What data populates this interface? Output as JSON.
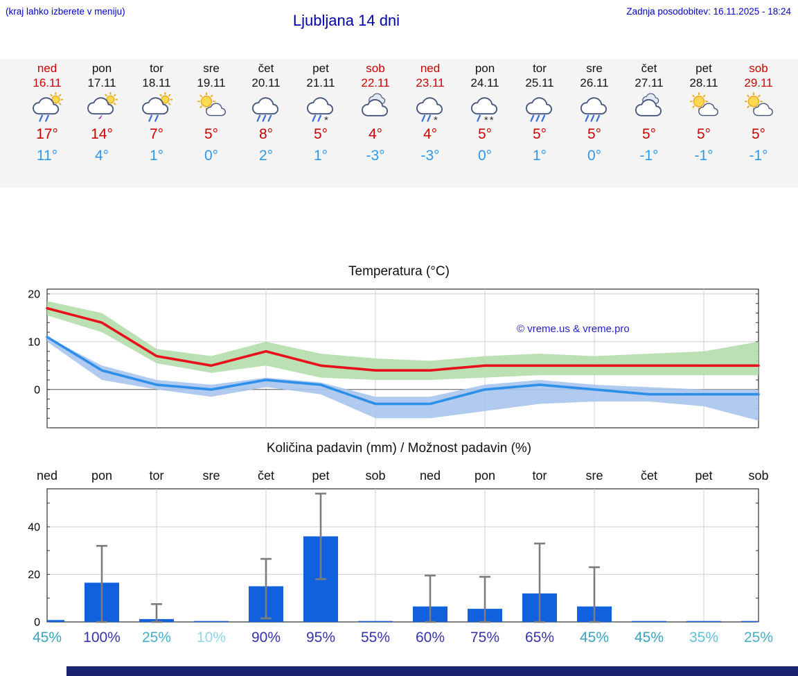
{
  "header": {
    "hint": "(kraj lahko izberete v meniju)",
    "title": "Ljubljana 14 dni",
    "updated": "Zadnja posodobitev: 16.11.2025 - 18:24"
  },
  "watermark": "© vreme.us & vreme.pro",
  "colors": {
    "link_blue": "#0000cc",
    "title_blue": "#0000aa",
    "weekend_red": "#cc0000",
    "high_temp_red": "#cc0000",
    "low_temp_blue": "#2f97e8",
    "temp_max_line": "#e8101c",
    "temp_min_line": "#2e8fe8",
    "temp_max_band": "#b2ddab",
    "temp_min_band": "#a8c4ee",
    "precip_bar": "#1160dd",
    "error_bar": "#7d7d7d",
    "footer_navy": "#1b2272",
    "strip_bg": "#f4f4f4"
  },
  "forecast": {
    "days": [
      {
        "name": "ned",
        "date": "16.11",
        "weekend": true,
        "icon": "sun-cloud-rain",
        "hi": "17°",
        "lo": "11°"
      },
      {
        "name": "pon",
        "date": "17.11",
        "weekend": false,
        "icon": "sun-cloud-storm",
        "hi": "14°",
        "lo": "4°"
      },
      {
        "name": "tor",
        "date": "18.11",
        "weekend": false,
        "icon": "sun-cloud-rain",
        "hi": "7°",
        "lo": "1°"
      },
      {
        "name": "sre",
        "date": "19.11",
        "weekend": false,
        "icon": "sun-cloud",
        "hi": "5°",
        "lo": "0°"
      },
      {
        "name": "čet",
        "date": "20.11",
        "weekend": false,
        "icon": "cloud-rain-heavy",
        "hi": "8°",
        "lo": "2°"
      },
      {
        "name": "pet",
        "date": "21.11",
        "weekend": false,
        "icon": "cloud-rain-snow",
        "hi": "5°",
        "lo": "1°"
      },
      {
        "name": "sob",
        "date": "22.11",
        "weekend": true,
        "icon": "cloud",
        "hi": "4°",
        "lo": "-3°"
      },
      {
        "name": "ned",
        "date": "23.11",
        "weekend": true,
        "icon": "cloud-rain-snow",
        "hi": "4°",
        "lo": "-3°"
      },
      {
        "name": "pon",
        "date": "24.11",
        "weekend": false,
        "icon": "cloud-snow",
        "hi": "5°",
        "lo": "0°"
      },
      {
        "name": "tor",
        "date": "25.11",
        "weekend": false,
        "icon": "cloud-rain-heavy",
        "hi": "5°",
        "lo": "1°"
      },
      {
        "name": "sre",
        "date": "26.11",
        "weekend": false,
        "icon": "cloud-rain-heavy",
        "hi": "5°",
        "lo": "0°"
      },
      {
        "name": "čet",
        "date": "27.11",
        "weekend": false,
        "icon": "cloud",
        "hi": "5°",
        "lo": "-1°"
      },
      {
        "name": "pet",
        "date": "28.11",
        "weekend": false,
        "icon": "sun-cloud",
        "hi": "5°",
        "lo": "-1°"
      },
      {
        "name": "sob",
        "date": "29.11",
        "weekend": true,
        "icon": "sun-cloud",
        "hi": "5°",
        "lo": "-1°"
      }
    ]
  },
  "chart_data": [
    {
      "type": "area",
      "title": "Temperatura (°C)",
      "categories": [
        "16.11",
        "17.11",
        "18.11",
        "19.11",
        "20.11",
        "21.11",
        "22.11",
        "23.11",
        "24.11",
        "25.11",
        "26.11",
        "27.11",
        "28.11",
        "29.11"
      ],
      "series": [
        {
          "name": "max temperature",
          "color": "#e8101c",
          "values": [
            17,
            14,
            7,
            5,
            8,
            5,
            4,
            4,
            5,
            5,
            5,
            5,
            5,
            5
          ]
        },
        {
          "name": "min temperature",
          "color": "#2e8fe8",
          "values": [
            11,
            4,
            1,
            0,
            2,
            1,
            -3,
            -3,
            0,
            1,
            0,
            -1,
            -1,
            -1
          ]
        }
      ],
      "bands": [
        {
          "name": "max range",
          "color": "#b2ddab",
          "upper": [
            18.5,
            16,
            8.5,
            7,
            10,
            7.5,
            6.5,
            6,
            7,
            7.5,
            7,
            7.5,
            8,
            10
          ],
          "lower": [
            15.5,
            12,
            5.5,
            3.5,
            5,
            2.5,
            2,
            2,
            2.5,
            3,
            3,
            3,
            3,
            3
          ]
        },
        {
          "name": "min range",
          "color": "#a8c4ee",
          "upper": [
            11,
            5,
            2,
            1,
            2.5,
            1.5,
            -1.5,
            -1.5,
            1,
            2,
            1,
            0.5,
            0,
            0
          ],
          "lower": [
            10,
            2,
            0,
            -1.5,
            0.5,
            -1,
            -6,
            -6,
            -4.5,
            -3,
            -2.5,
            -2.5,
            -3.5,
            -6.5
          ]
        }
      ],
      "ylim": [
        -8,
        21
      ],
      "yticks": [
        0,
        10,
        20
      ],
      "grid": true,
      "legend": "none"
    },
    {
      "type": "bar",
      "title": "Količina padavin (mm) / Možnost padavin (%)",
      "categories": [
        "ned",
        "pon",
        "tor",
        "sre",
        "čet",
        "pet",
        "sob",
        "ned",
        "pon",
        "tor",
        "sre",
        "čet",
        "pet",
        "sob"
      ],
      "values": [
        0.8,
        16.5,
        1.2,
        0.2,
        15,
        36,
        0.15,
        6.5,
        5.5,
        12,
        6.5,
        0.15,
        0.2,
        0.15
      ],
      "error_high": [
        null,
        32,
        7.5,
        null,
        26.5,
        54,
        null,
        19.5,
        19,
        33,
        23,
        null,
        null,
        null
      ],
      "error_low": [
        null,
        0,
        0,
        null,
        1.5,
        18,
        null,
        0,
        0,
        0,
        0,
        null,
        null,
        null
      ],
      "probability": [
        {
          "label": "45%",
          "color": "#36a3c4"
        },
        {
          "label": "100%",
          "color": "#3434ad"
        },
        {
          "label": "25%",
          "color": "#46adca"
        },
        {
          "label": "10%",
          "color": "#90d8e6"
        },
        {
          "label": "90%",
          "color": "#3434ad"
        },
        {
          "label": "95%",
          "color": "#3434ad"
        },
        {
          "label": "55%",
          "color": "#3434ad"
        },
        {
          "label": "60%",
          "color": "#3434ad"
        },
        {
          "label": "75%",
          "color": "#3434ad"
        },
        {
          "label": "65%",
          "color": "#3434ad"
        },
        {
          "label": "45%",
          "color": "#36a3c4"
        },
        {
          "label": "45%",
          "color": "#36a3c4"
        },
        {
          "label": "35%",
          "color": "#63bed8"
        },
        {
          "label": "25%",
          "color": "#46adca"
        }
      ],
      "ylim": [
        0,
        56
      ],
      "yticks": [
        0,
        20,
        40
      ],
      "grid": true,
      "legend": "none"
    }
  ]
}
